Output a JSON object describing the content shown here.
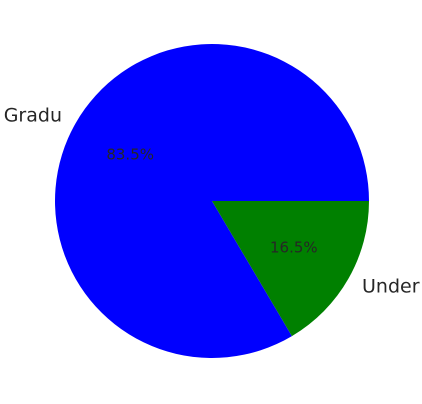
{
  "chart_data": {
    "type": "pie",
    "title": "",
    "slices": [
      {
        "label": "Gradu",
        "value": 83.5,
        "pct_label": "83.5%",
        "color": "#0000ff"
      },
      {
        "label": "Under",
        "value": 16.5,
        "pct_label": "16.5%",
        "color": "#008000"
      }
    ],
    "start_angle_deg": 0,
    "direction": "counterclockwise",
    "legend": "none"
  }
}
